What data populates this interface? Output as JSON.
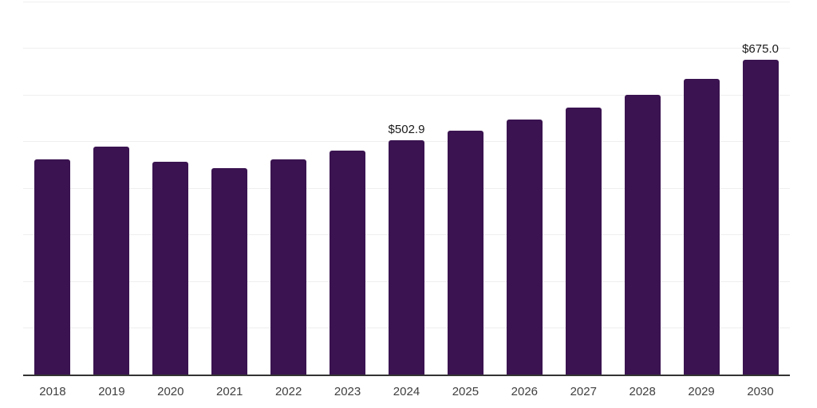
{
  "chart_data": {
    "type": "bar",
    "title": "",
    "xlabel": "",
    "ylabel": "",
    "categories": [
      "2018",
      "2019",
      "2020",
      "2021",
      "2022",
      "2023",
      "2024",
      "2025",
      "2026",
      "2027",
      "2028",
      "2029",
      "2030"
    ],
    "values": [
      461,
      489,
      456,
      442,
      461,
      480,
      502.9,
      523,
      547,
      573,
      600,
      634,
      675
    ],
    "value_labels": {
      "2024": "$502.9",
      "2030": "$675.0"
    },
    "ylim": [
      0,
      800
    ],
    "grid_step": 100,
    "grid": "horizontal",
    "y_tick_labels_visible": false,
    "legend_position": "none"
  },
  "colors": {
    "background": "#ffffff",
    "bar": "#3a1350",
    "gridline": "#efefef",
    "axis_line": "#333333",
    "tick_label": "#404040",
    "value_label": "#1a1a1a"
  }
}
